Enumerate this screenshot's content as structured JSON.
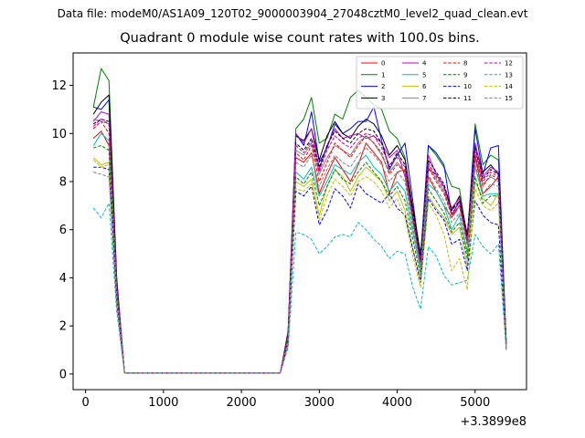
{
  "suptitle": "Data file: modeM0/AS1A09_120T02_9000003904_27048cztM0_level2_quad_clean.evt",
  "chart_data": {
    "type": "line",
    "title": "Quadrant 0 module wise count rates with 100.0s bins.",
    "xlabel": "",
    "ylabel": "",
    "x_offset_label": "+3.3899e8",
    "xlim": [
      -160,
      5660
    ],
    "ylim": [
      -0.65,
      13.35
    ],
    "x_ticks": [
      0,
      1000,
      2000,
      3000,
      4000,
      5000
    ],
    "y_ticks": [
      0,
      2,
      4,
      6,
      8,
      10,
      12
    ],
    "legend_position": "upper right",
    "legend_columns": 4,
    "x": [
      100,
      200,
      300,
      400,
      500,
      600,
      700,
      800,
      900,
      1000,
      1100,
      1200,
      1300,
      1400,
      1500,
      1600,
      1700,
      1800,
      1900,
      2000,
      2100,
      2200,
      2300,
      2400,
      2500,
      2600,
      2700,
      2800,
      2900,
      3000,
      3100,
      3200,
      3300,
      3400,
      3500,
      3600,
      3700,
      3800,
      3900,
      4000,
      4100,
      4200,
      4300,
      4400,
      4500,
      4600,
      4700,
      4800,
      4900,
      5000,
      5100,
      5200,
      5300,
      5400
    ],
    "series": [
      {
        "name": "0",
        "color": "#ff0000",
        "dash": "solid",
        "values": [
          9.8,
          10.1,
          9.5,
          3.5,
          0.05,
          0.05,
          0.05,
          0.05,
          0.05,
          0.05,
          0.05,
          0.05,
          0.05,
          0.05,
          0.05,
          0.05,
          0.05,
          0.05,
          0.05,
          0.05,
          0.05,
          0.05,
          0.05,
          0.05,
          0.05,
          1.5,
          9.0,
          8.8,
          9.2,
          7.5,
          8.3,
          9.0,
          8.5,
          8.0,
          8.7,
          9.6,
          9.2,
          8.8,
          7.5,
          8.4,
          8.5,
          6.5,
          4.8,
          8.2,
          7.6,
          7.0,
          6.5,
          7.0,
          5.5,
          9.0,
          7.5,
          7.8,
          8.2,
          1.2
        ]
      },
      {
        "name": "1",
        "color": "#008000",
        "dash": "solid",
        "values": [
          11.1,
          12.7,
          12.2,
          4.0,
          0.05,
          0.05,
          0.05,
          0.05,
          0.05,
          0.05,
          0.05,
          0.05,
          0.05,
          0.05,
          0.05,
          0.05,
          0.05,
          0.05,
          0.05,
          0.05,
          0.05,
          0.05,
          0.05,
          0.05,
          0.05,
          1.8,
          10.2,
          10.6,
          11.5,
          9.6,
          9.8,
          10.8,
          10.6,
          11.5,
          11.8,
          11.5,
          11.2,
          11.0,
          10.1,
          9.8,
          9.0,
          6.6,
          4.9,
          9.5,
          9.1,
          8.6,
          7.8,
          7.7,
          5.6,
          10.4,
          8.7,
          9.1,
          8.9,
          1.3
        ]
      },
      {
        "name": "2",
        "color": "#0000ff",
        "dash": "solid",
        "values": [
          11.1,
          11.0,
          11.4,
          3.8,
          0.05,
          0.05,
          0.05,
          0.05,
          0.05,
          0.05,
          0.05,
          0.05,
          0.05,
          0.05,
          0.05,
          0.05,
          0.05,
          0.05,
          0.05,
          0.05,
          0.05,
          0.05,
          0.05,
          0.05,
          0.05,
          1.7,
          10.0,
          9.5,
          10.9,
          8.8,
          9.4,
          10.4,
          10.0,
          10.2,
          10.5,
          10.5,
          11.1,
          9.7,
          8.5,
          9.1,
          9.6,
          7.2,
          4.8,
          9.5,
          9.2,
          8.7,
          6.6,
          7.2,
          5.5,
          10.2,
          8.3,
          9.4,
          9.5,
          1.3
        ]
      },
      {
        "name": "3",
        "color": "#000000",
        "dash": "solid",
        "values": [
          10.8,
          11.3,
          11.6,
          3.9,
          0.05,
          0.05,
          0.05,
          0.05,
          0.05,
          0.05,
          0.05,
          0.05,
          0.05,
          0.05,
          0.05,
          0.05,
          0.05,
          0.05,
          0.05,
          0.05,
          0.05,
          0.05,
          0.05,
          0.05,
          0.05,
          1.7,
          9.9,
          9.7,
          10.2,
          8.9,
          9.9,
          10.5,
          10.0,
          9.8,
          10.3,
          10.6,
          10.4,
          9.9,
          9.1,
          9.5,
          8.9,
          6.9,
          5.0,
          8.5,
          8.3,
          7.8,
          6.8,
          7.4,
          5.8,
          9.5,
          8.4,
          8.7,
          8.3,
          1.3
        ]
      },
      {
        "name": "4",
        "color": "#bf00bf",
        "dash": "solid",
        "values": [
          10.5,
          10.9,
          10.8,
          3.7,
          0.05,
          0.05,
          0.05,
          0.05,
          0.05,
          0.05,
          0.05,
          0.05,
          0.05,
          0.05,
          0.05,
          0.05,
          0.05,
          0.05,
          0.05,
          0.05,
          0.05,
          0.05,
          0.05,
          0.05,
          0.05,
          1.6,
          10.0,
          9.6,
          10.2,
          8.5,
          9.5,
          10.2,
          9.8,
          9.9,
          10.0,
          9.8,
          9.9,
          9.6,
          9.0,
          9.3,
          8.2,
          6.4,
          4.7,
          9.1,
          8.3,
          7.8,
          6.9,
          7.3,
          5.6,
          9.6,
          8.2,
          8.6,
          8.4,
          1.2
        ]
      },
      {
        "name": "5",
        "color": "#00bfbf",
        "dash": "solid",
        "values": [
          9.5,
          10.0,
          9.7,
          3.3,
          0.05,
          0.05,
          0.05,
          0.05,
          0.05,
          0.05,
          0.05,
          0.05,
          0.05,
          0.05,
          0.05,
          0.05,
          0.05,
          0.05,
          0.05,
          0.05,
          0.05,
          0.05,
          0.05,
          0.05,
          0.05,
          1.4,
          8.4,
          8.1,
          8.6,
          7.4,
          8.0,
          8.7,
          8.5,
          8.3,
          8.8,
          9.1,
          8.6,
          8.3,
          7.6,
          8.0,
          7.6,
          5.9,
          4.3,
          7.9,
          7.6,
          7.0,
          6.0,
          6.6,
          5.0,
          8.6,
          7.4,
          7.5,
          7.5,
          1.2
        ]
      },
      {
        "name": "6",
        "color": "#bfbf00",
        "dash": "solid",
        "values": [
          9.0,
          8.7,
          8.8,
          3.2,
          0.05,
          0.05,
          0.05,
          0.05,
          0.05,
          0.05,
          0.05,
          0.05,
          0.05,
          0.05,
          0.05,
          0.05,
          0.05,
          0.05,
          0.05,
          0.05,
          0.05,
          0.05,
          0.05,
          0.05,
          0.05,
          1.3,
          8.0,
          7.8,
          8.1,
          6.6,
          7.8,
          8.5,
          8.2,
          7.6,
          8.2,
          8.6,
          8.3,
          8.0,
          7.2,
          7.6,
          6.8,
          5.2,
          3.9,
          7.4,
          6.9,
          6.5,
          5.8,
          6.1,
          4.5,
          8.0,
          7.3,
          7.0,
          7.5,
          1.0
        ]
      },
      {
        "name": "7",
        "color": "#808080",
        "dash": "solid",
        "values": [
          10.6,
          10.5,
          10.4,
          3.6,
          0.05,
          0.05,
          0.05,
          0.05,
          0.05,
          0.05,
          0.05,
          0.05,
          0.05,
          0.05,
          0.05,
          0.05,
          0.05,
          0.05,
          0.05,
          0.05,
          0.05,
          0.05,
          0.05,
          0.05,
          0.05,
          1.6,
          9.3,
          9.1,
          9.6,
          8.3,
          9.0,
          9.5,
          9.3,
          9.1,
          9.6,
          9.9,
          9.6,
          9.1,
          8.4,
          8.8,
          8.4,
          6.3,
          4.5,
          8.7,
          8.1,
          7.6,
          6.6,
          7.0,
          5.4,
          9.1,
          7.9,
          8.2,
          8.0,
          1.2
        ]
      },
      {
        "name": "8",
        "color": "#ff0000",
        "dash": "dashed",
        "values": [
          10.2,
          10.5,
          10.0,
          3.6,
          0.05,
          0.05,
          0.05,
          0.05,
          0.05,
          0.05,
          0.05,
          0.05,
          0.05,
          0.05,
          0.05,
          0.05,
          0.05,
          0.05,
          0.05,
          0.05,
          0.05,
          0.05,
          0.05,
          0.05,
          0.05,
          1.6,
          9.2,
          8.9,
          9.5,
          8.0,
          8.8,
          9.6,
          9.3,
          9.0,
          9.5,
          9.9,
          9.6,
          9.2,
          8.3,
          8.7,
          8.4,
          6.5,
          4.6,
          8.6,
          8.0,
          7.5,
          6.6,
          7.0,
          5.4,
          9.1,
          7.8,
          8.3,
          8.1,
          1.2
        ]
      },
      {
        "name": "9",
        "color": "#008000",
        "dash": "dashed",
        "values": [
          9.4,
          9.5,
          9.3,
          3.3,
          0.05,
          0.05,
          0.05,
          0.05,
          0.05,
          0.05,
          0.05,
          0.05,
          0.05,
          0.05,
          0.05,
          0.05,
          0.05,
          0.05,
          0.05,
          0.05,
          0.05,
          0.05,
          0.05,
          0.05,
          0.05,
          1.4,
          8.2,
          7.9,
          8.4,
          7.0,
          7.8,
          8.5,
          8.1,
          7.9,
          8.4,
          8.8,
          8.4,
          8.0,
          7.4,
          7.8,
          7.2,
          5.6,
          4.1,
          7.7,
          7.2,
          6.7,
          5.9,
          6.3,
          4.8,
          8.2,
          7.1,
          7.4,
          7.4,
          1.1
        ]
      },
      {
        "name": "10",
        "color": "#0000ff",
        "dash": "dashed",
        "values": [
          8.6,
          8.6,
          8.5,
          3.0,
          0.05,
          0.05,
          0.05,
          0.05,
          0.05,
          0.05,
          0.05,
          0.05,
          0.05,
          0.05,
          0.05,
          0.05,
          0.05,
          0.05,
          0.05,
          0.05,
          0.05,
          0.05,
          0.05,
          0.05,
          0.05,
          1.3,
          7.6,
          7.4,
          7.8,
          6.2,
          6.8,
          7.7,
          7.4,
          6.9,
          7.9,
          7.5,
          7.3,
          7.1,
          7.5,
          6.9,
          6.6,
          5.2,
          3.8,
          7.3,
          6.8,
          6.4,
          5.4,
          5.6,
          4.3,
          7.2,
          6.6,
          6.3,
          6.2,
          1.0
        ]
      },
      {
        "name": "11",
        "color": "#000000",
        "dash": "dashed",
        "values": [
          10.4,
          10.6,
          10.5,
          3.6,
          0.05,
          0.05,
          0.05,
          0.05,
          0.05,
          0.05,
          0.05,
          0.05,
          0.05,
          0.05,
          0.05,
          0.05,
          0.05,
          0.05,
          0.05,
          0.05,
          0.05,
          0.05,
          0.05,
          0.05,
          0.05,
          1.6,
          9.6,
          9.3,
          9.8,
          8.6,
          9.5,
          10.1,
          9.8,
          9.6,
          10.0,
          10.2,
          10.1,
          9.6,
          8.6,
          9.2,
          8.7,
          6.7,
          4.7,
          8.9,
          8.4,
          7.9,
          6.8,
          7.2,
          5.7,
          9.4,
          8.1,
          8.5,
          8.3,
          1.3
        ]
      },
      {
        "name": "12",
        "color": "#bf00bf",
        "dash": "dashed",
        "values": [
          10.3,
          10.6,
          10.4,
          3.6,
          0.05,
          0.05,
          0.05,
          0.05,
          0.05,
          0.05,
          0.05,
          0.05,
          0.05,
          0.05,
          0.05,
          0.05,
          0.05,
          0.05,
          0.05,
          0.05,
          0.05,
          0.05,
          0.05,
          0.05,
          0.05,
          1.6,
          9.5,
          9.2,
          9.7,
          8.4,
          9.3,
          9.9,
          9.6,
          9.4,
          9.8,
          10.0,
          9.9,
          9.4,
          8.7,
          9.0,
          8.6,
          6.6,
          4.6,
          8.8,
          8.2,
          7.7,
          6.7,
          7.1,
          5.6,
          9.3,
          8.0,
          8.4,
          8.2,
          1.2
        ]
      },
      {
        "name": "13",
        "color": "#00bfbf",
        "dash": "dashed",
        "values": [
          6.9,
          6.5,
          7.1,
          2.6,
          0.05,
          0.05,
          0.05,
          0.05,
          0.05,
          0.05,
          0.05,
          0.05,
          0.05,
          0.05,
          0.05,
          0.05,
          0.05,
          0.05,
          0.05,
          0.05,
          0.05,
          0.05,
          0.05,
          0.05,
          0.05,
          1.1,
          5.9,
          5.8,
          5.6,
          5.0,
          5.3,
          5.7,
          5.8,
          5.7,
          6.3,
          6.0,
          5.6,
          5.3,
          4.8,
          5.1,
          5.0,
          3.6,
          2.7,
          5.3,
          4.9,
          4.1,
          3.7,
          3.8,
          3.9,
          5.8,
          5.3,
          5.0,
          5.4,
          1.0
        ]
      },
      {
        "name": "14",
        "color": "#bfbf00",
        "dash": "dashed",
        "values": [
          8.9,
          8.6,
          8.7,
          3.1,
          0.05,
          0.05,
          0.05,
          0.05,
          0.05,
          0.05,
          0.05,
          0.05,
          0.05,
          0.05,
          0.05,
          0.05,
          0.05,
          0.05,
          0.05,
          0.05,
          0.05,
          0.05,
          0.05,
          0.05,
          0.05,
          1.3,
          7.7,
          7.6,
          7.9,
          6.4,
          7.4,
          8.1,
          7.8,
          7.4,
          8.0,
          8.2,
          8.0,
          7.6,
          6.9,
          7.3,
          6.5,
          4.9,
          3.6,
          7.1,
          6.6,
          5.8,
          4.3,
          4.8,
          3.5,
          7.7,
          7.0,
          6.8,
          7.1,
          1.0
        ]
      },
      {
        "name": "15",
        "color": "#808080",
        "dash": "dashed",
        "values": [
          8.4,
          8.3,
          8.2,
          2.9,
          0.05,
          0.05,
          0.05,
          0.05,
          0.05,
          0.05,
          0.05,
          0.05,
          0.05,
          0.05,
          0.05,
          0.05,
          0.05,
          0.05,
          0.05,
          0.05,
          0.05,
          0.05,
          0.05,
          0.05,
          0.05,
          1.2,
          8.8,
          8.6,
          9.1,
          7.8,
          8.5,
          9.1,
          8.8,
          8.6,
          9.1,
          9.4,
          9.1,
          8.7,
          8.0,
          8.4,
          8.0,
          6.1,
          4.3,
          8.3,
          7.7,
          7.2,
          6.3,
          6.7,
          5.1,
          8.7,
          7.5,
          7.9,
          7.8,
          1.1
        ]
      }
    ]
  }
}
